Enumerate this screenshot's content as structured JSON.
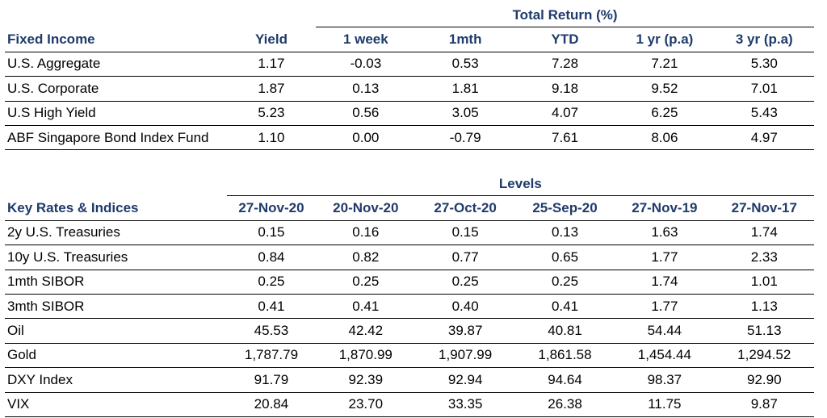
{
  "fixed_income": {
    "group_header": "Total Return (%)",
    "headers": [
      "Fixed Income",
      "Yield",
      "1 week",
      "1mth",
      "YTD",
      "1 yr (p.a)",
      "3 yr (p.a)"
    ],
    "rows": [
      [
        "U.S. Aggregate",
        "1.17",
        "-0.03",
        "0.53",
        "7.28",
        "7.21",
        "5.30"
      ],
      [
        "U.S. Corporate",
        "1.87",
        "0.13",
        "1.81",
        "9.18",
        "9.52",
        "7.01"
      ],
      [
        "U.S High Yield",
        "5.23",
        "0.56",
        "3.05",
        "4.07",
        "6.25",
        "5.43"
      ],
      [
        "ABF Singapore Bond Index Fund",
        "1.10",
        "0.00",
        "-0.79",
        "7.61",
        "8.06",
        "4.97"
      ]
    ]
  },
  "key_rates": {
    "group_header": "Levels",
    "headers": [
      "Key Rates & Indices",
      "27-Nov-20",
      "20-Nov-20",
      "27-Oct-20",
      "25-Sep-20",
      "27-Nov-19",
      "27-Nov-17"
    ],
    "rows": [
      [
        "2y U.S. Treasuries",
        "0.15",
        "0.16",
        "0.15",
        "0.13",
        "1.63",
        "1.74"
      ],
      [
        "10y U.S. Treasuries",
        "0.84",
        "0.82",
        "0.77",
        "0.65",
        "1.77",
        "2.33"
      ],
      [
        "1mth SIBOR",
        "0.25",
        "0.25",
        "0.25",
        "0.25",
        "1.74",
        "1.01"
      ],
      [
        "3mth SIBOR",
        "0.41",
        "0.41",
        "0.40",
        "0.41",
        "1.77",
        "1.13"
      ],
      [
        "Oil",
        "45.53",
        "42.42",
        "39.87",
        "40.81",
        "54.44",
        "51.13"
      ],
      [
        "Gold",
        "1,787.79",
        "1,870.99",
        "1,907.99",
        "1,861.58",
        "1,454.44",
        "1,294.52"
      ],
      [
        "DXY Index",
        "91.79",
        "92.39",
        "92.94",
        "94.64",
        "98.37",
        "92.90"
      ],
      [
        "VIX",
        "20.84",
        "23.70",
        "33.35",
        "26.38",
        "11.75",
        "9.87"
      ]
    ]
  }
}
